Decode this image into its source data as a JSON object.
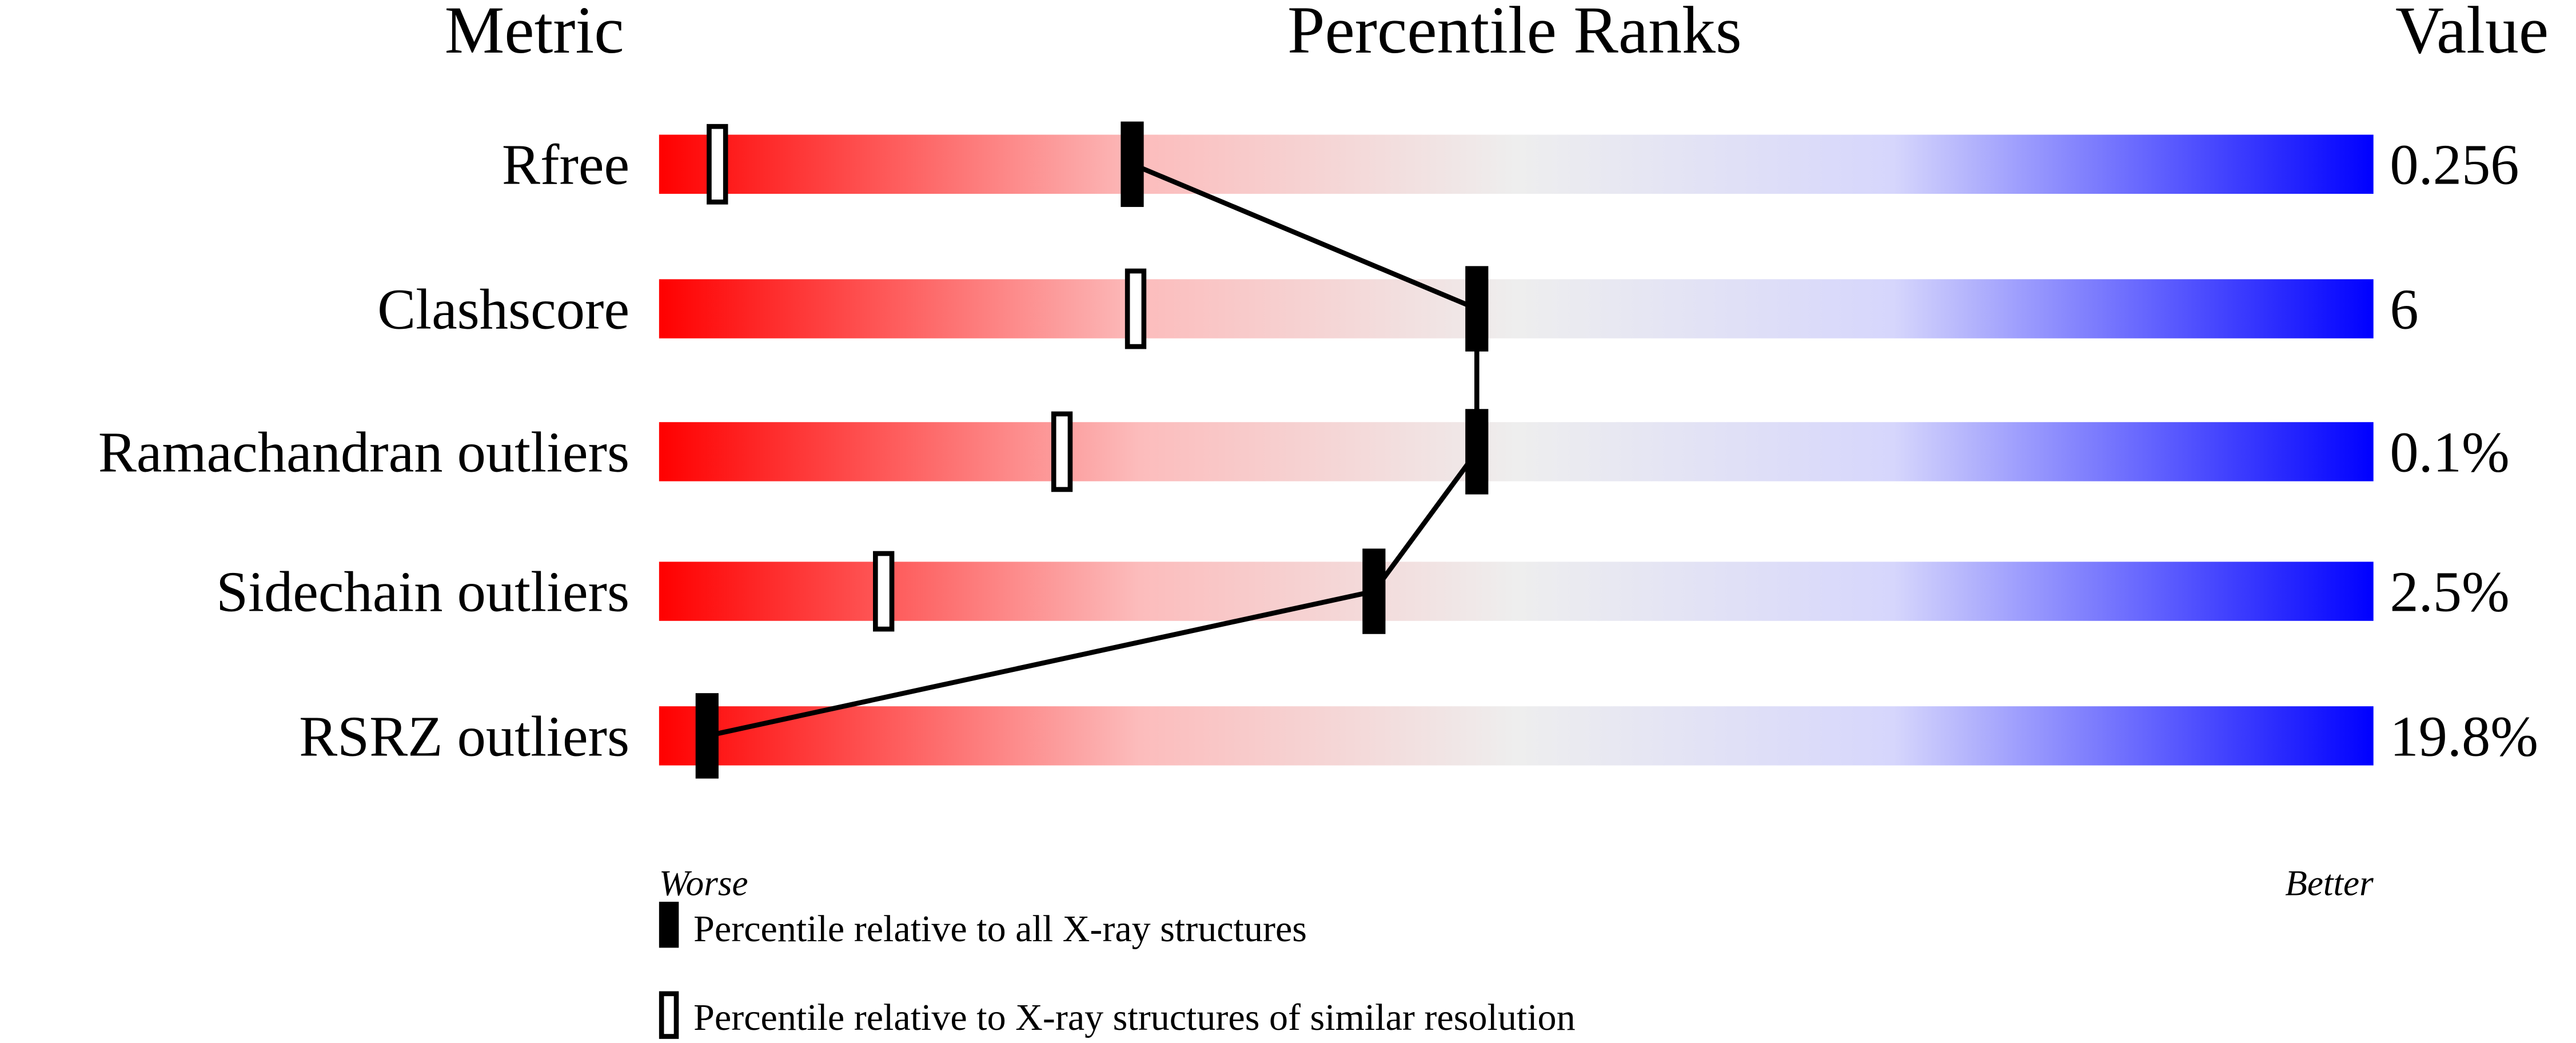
{
  "chart_data": {
    "type": "percentile-bar",
    "headers": {
      "metric": "Metric",
      "ranks": "Percentile Ranks",
      "value": "Value"
    },
    "xlim": [
      0,
      100
    ],
    "metrics": [
      {
        "name": "Rfree",
        "value": "0.256",
        "percentile_all": 27.6,
        "percentile_similar": 3.4
      },
      {
        "name": "Clashscore",
        "value": "6",
        "percentile_all": 47.7,
        "percentile_similar": 27.8
      },
      {
        "name": "Ramachandran outliers",
        "value": "0.1%",
        "percentile_all": 47.7,
        "percentile_similar": 23.5
      },
      {
        "name": "Sidechain outliers",
        "value": "2.5%",
        "percentile_all": 41.7,
        "percentile_similar": 13.1
      },
      {
        "name": "RSRZ outliers",
        "value": "19.8%",
        "percentile_all": 2.8,
        "percentile_similar": null
      }
    ],
    "axis_labels": {
      "left": "Worse",
      "right": "Better"
    },
    "legend": {
      "all": "Percentile relative to all X-ray structures",
      "similar": "Percentile relative to X-ray structures of similar resolution"
    },
    "colors": {
      "worse": "#ff0000",
      "middle": "#eeeeee",
      "better": "#0000ff",
      "marker": "#000000"
    }
  }
}
